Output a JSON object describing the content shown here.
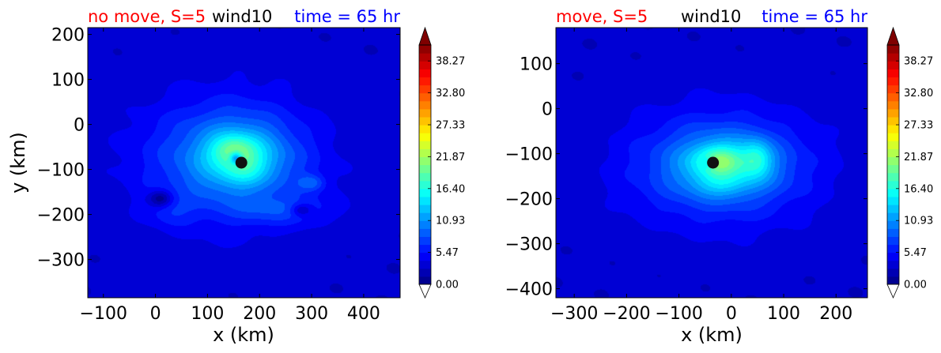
{
  "chart_data": [
    {
      "type": "heatmap",
      "title_parts": [
        {
          "text": "no move, S=5",
          "color": "#ff0000"
        },
        {
          "text": "wind10",
          "color": "#000000"
        },
        {
          "text": "time = 65 hr",
          "color": "#0000ff"
        }
      ],
      "xlabel": "x (km)",
      "ylabel": "y (km)",
      "xlim": [
        -130,
        470
      ],
      "ylim": [
        -385,
        215
      ],
      "xticks": [
        -100,
        0,
        100,
        200,
        300,
        400
      ],
      "yticks": [
        -300,
        -200,
        -100,
        0,
        100,
        200
      ],
      "xtick_labels": [
        "−100",
        "0",
        "100",
        "200",
        "300",
        "400"
      ],
      "ytick_labels": [
        "−300",
        "−200",
        "−100",
        "0",
        "100",
        "200"
      ],
      "center": {
        "x": 165,
        "y": -85
      },
      "colorbar": {
        "min": 0,
        "max": 41,
        "step": 1.367,
        "tick_values": [
          0,
          5.47,
          10.93,
          16.4,
          21.87,
          27.33,
          32.8,
          38.27
        ],
        "tick_labels": [
          "0.00",
          "5.47",
          "10.93",
          "16.40",
          "21.87",
          "27.33",
          "32.80",
          "38.27"
        ],
        "extend": "both"
      },
      "field": {
        "background": 3,
        "blobs": [
          {
            "x": 140,
            "y": -80,
            "sx": 160,
            "sy": 135,
            "a": 7
          },
          {
            "x": 165,
            "y": -70,
            "sx": 85,
            "sy": 70,
            "a": 6
          },
          {
            "x": 150,
            "y": -55,
            "sx": 40,
            "sy": 30,
            "a": 5
          },
          {
            "x": 170,
            "y": -95,
            "sx": 40,
            "sy": 35,
            "a": 3
          },
          {
            "x": 300,
            "y": -130,
            "sx": 25,
            "sy": 18,
            "a": 4
          },
          {
            "x": 250,
            "y": -190,
            "sx": 90,
            "sy": 30,
            "a": 3
          },
          {
            "x": 30,
            "y": -195,
            "sx": 40,
            "sy": 30,
            "a": 2
          },
          {
            "x": 10,
            "y": -165,
            "sx": 22,
            "sy": 18,
            "a": -5
          },
          {
            "x": 280,
            "y": -190,
            "sx": 20,
            "sy": 14,
            "a": -4
          },
          {
            "x": 155,
            "y": -75,
            "sx": 12,
            "sy": 14,
            "a": -9
          }
        ]
      }
    },
    {
      "type": "heatmap",
      "title_parts": [
        {
          "text": "move, S=5",
          "color": "#ff0000"
        },
        {
          "text": "wind10",
          "color": "#000000"
        },
        {
          "text": "time = 65 hr",
          "color": "#0000ff"
        }
      ],
      "xlabel": "x (km)",
      "ylabel": "",
      "xlim": [
        -335,
        260
      ],
      "ylim": [
        -420,
        180
      ],
      "xticks": [
        -300,
        -200,
        -100,
        0,
        100,
        200
      ],
      "yticks": [
        -400,
        -300,
        -200,
        -100,
        0,
        100
      ],
      "xtick_labels": [
        "−300",
        "−200",
        "−100",
        "0",
        "100",
        "200"
      ],
      "ytick_labels": [
        "−400",
        "−300",
        "−200",
        "−100",
        "0",
        "100"
      ],
      "center": {
        "x": -35,
        "y": -120
      },
      "colorbar": {
        "min": 0,
        "max": 41,
        "step": 1.367,
        "tick_values": [
          0,
          5.47,
          10.93,
          16.4,
          21.87,
          27.33,
          32.8,
          38.27
        ],
        "tick_labels": [
          "0.00",
          "5.47",
          "10.93",
          "16.40",
          "21.87",
          "27.33",
          "32.80",
          "38.27"
        ],
        "extend": "both"
      },
      "field": {
        "background": 3,
        "blobs": [
          {
            "x": -20,
            "y": -130,
            "sx": 170,
            "sy": 120,
            "a": 7
          },
          {
            "x": -10,
            "y": -125,
            "sx": 90,
            "sy": 60,
            "a": 6
          },
          {
            "x": -25,
            "y": -115,
            "sx": 40,
            "sy": 30,
            "a": 6
          },
          {
            "x": 50,
            "y": -110,
            "sx": 28,
            "sy": 40,
            "a": 5
          },
          {
            "x": -20,
            "y": -170,
            "sx": 50,
            "sy": 25,
            "a": 2
          },
          {
            "x": -45,
            "y": -120,
            "sx": 14,
            "sy": 14,
            "a": -4
          }
        ]
      }
    }
  ]
}
